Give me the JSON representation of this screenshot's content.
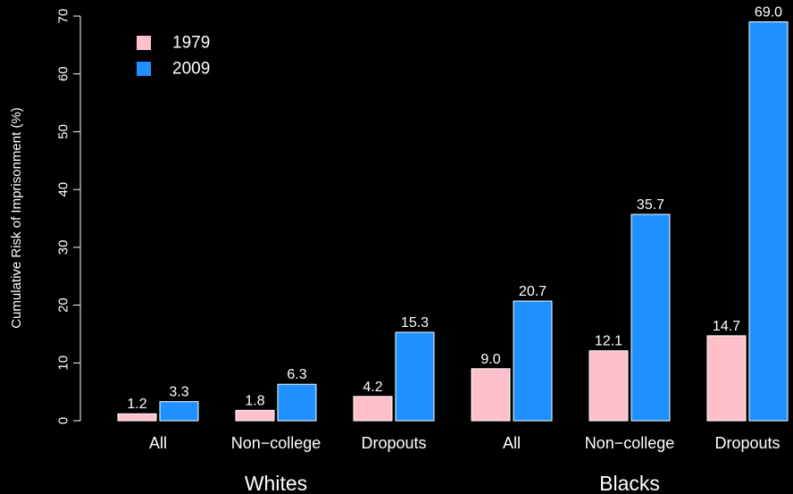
{
  "chart_data": {
    "type": "bar",
    "ylabel": "Cumulative Risk of Imprisonment (%)",
    "ylim": [
      0,
      70
    ],
    "yticks": [
      "0",
      "10",
      "20",
      "30",
      "40",
      "50",
      "60",
      "70"
    ],
    "legend_position": "top-left",
    "categories": [
      "All",
      "Non−college",
      "Dropouts",
      "All",
      "Non−college",
      "Dropouts"
    ],
    "groups": [
      "Whites",
      "Blacks"
    ],
    "series": [
      {
        "name": "1979",
        "color": "#ffc0cb",
        "values": [
          1.2,
          1.8,
          4.2,
          9.0,
          12.1,
          14.7
        ],
        "labels": [
          "1.2",
          "1.8",
          "4.2",
          "9.0",
          "12.1",
          "14.7"
        ]
      },
      {
        "name": "2009",
        "color": "#1e90ff",
        "values": [
          3.3,
          6.3,
          15.3,
          20.7,
          35.7,
          69.0
        ],
        "labels": [
          "3.3",
          "6.3",
          "15.3",
          "20.7",
          "35.7",
          "69.0"
        ]
      }
    ]
  }
}
